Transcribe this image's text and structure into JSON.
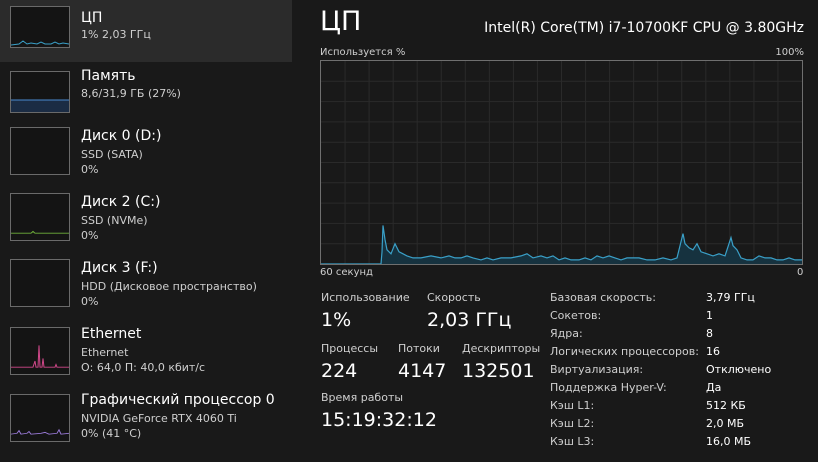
{
  "sidebar": {
    "items": [
      {
        "title": "ЦП",
        "line1": "1% 2,03 ГГц",
        "line2": "",
        "graph_color": "#3aa0c8"
      },
      {
        "title": "Память",
        "line1": "8,6/31,9 ГБ (27%)",
        "line2": "",
        "graph_color": "#4a8ad0"
      },
      {
        "title": "Диск 0 (D:)",
        "line1": "SSD (SATA)",
        "line2": "0%",
        "graph_color": "#6fb03a"
      },
      {
        "title": "Диск 2 (C:)",
        "line1": "SSD (NVMe)",
        "line2": "0%",
        "graph_color": "#6fb03a"
      },
      {
        "title": "Диск 3 (F:)",
        "line1": "HDD (Дисковое пространство)",
        "line2": "0%",
        "graph_color": "#6fb03a"
      },
      {
        "title": "Ethernet",
        "line1": "Ethernet",
        "line2": "О: 64,0 П: 40,0 кбит/с",
        "graph_color": "#d1488a"
      },
      {
        "title": "Графический процессор 0",
        "line1": "NVIDIA GeForce RTX 4060 Ti",
        "line2": "0%  (41 °C)",
        "graph_color": "#9a7ad8"
      }
    ]
  },
  "main": {
    "title": "ЦП",
    "cpu_model": "Intel(R) Core(TM) i7-10700KF CPU @ 3.80GHz",
    "graph": {
      "label_left": "Используется %",
      "label_right": "100%",
      "axis_left": "60 секунд",
      "axis_right": "0",
      "line_color": "#3aa0c8",
      "fill_color": "#16323f",
      "utilization_percent": [
        2,
        2,
        1,
        1,
        1,
        1,
        1,
        1,
        1,
        1,
        1,
        1,
        1,
        1,
        1,
        1,
        2,
        1,
        1,
        1,
        1,
        1,
        1,
        1,
        1,
        1,
        1,
        1,
        1,
        1,
        1,
        1,
        1,
        1,
        1,
        1,
        1,
        1,
        1,
        1,
        1,
        1,
        1,
        1,
        1,
        1,
        1,
        1,
        1,
        1,
        1,
        1,
        1,
        1,
        1,
        1,
        1,
        1,
        1,
        1,
        1,
        1,
        1,
        1,
        1,
        1,
        1,
        1,
        1,
        1,
        1,
        1,
        1,
        1,
        1,
        1,
        1,
        1,
        1,
        1,
        1,
        1,
        1,
        1,
        1,
        1,
        1,
        1,
        1,
        1,
        1,
        1,
        1,
        1,
        1,
        1,
        1,
        1,
        1,
        1,
        1,
        1,
        1,
        1,
        1,
        1,
        1,
        1,
        1,
        1,
        1,
        1,
        1,
        1,
        1,
        1,
        1,
        1,
        1,
        1
      ]
    },
    "stats": {
      "utilization_label": "Использование",
      "utilization_value": "1%",
      "speed_label": "Скорость",
      "speed_value": "2,03 ГГц",
      "processes_label": "Процессы",
      "processes_value": "224",
      "threads_label": "Потоки",
      "threads_value": "4147",
      "handles_label": "Дескрипторы",
      "handles_value": "132501",
      "uptime_label": "Время работы",
      "uptime_value": "15:19:32:12"
    },
    "specs": [
      {
        "label": "Базовая скорость:",
        "value": "3,79 ГГц"
      },
      {
        "label": "Сокетов:",
        "value": "1"
      },
      {
        "label": "Ядра:",
        "value": "8"
      },
      {
        "label": "Логических процессоров:",
        "value": "16"
      },
      {
        "label": "Виртуализация:",
        "value": "Отключено"
      },
      {
        "label": "Поддержка Hyper-V:",
        "value": "Да"
      },
      {
        "label": "Кэш L1:",
        "value": "512 КБ"
      },
      {
        "label": "Кэш L2:",
        "value": "2,0 МБ"
      },
      {
        "label": "Кэш L3:",
        "value": "16,0 МБ"
      }
    ]
  }
}
